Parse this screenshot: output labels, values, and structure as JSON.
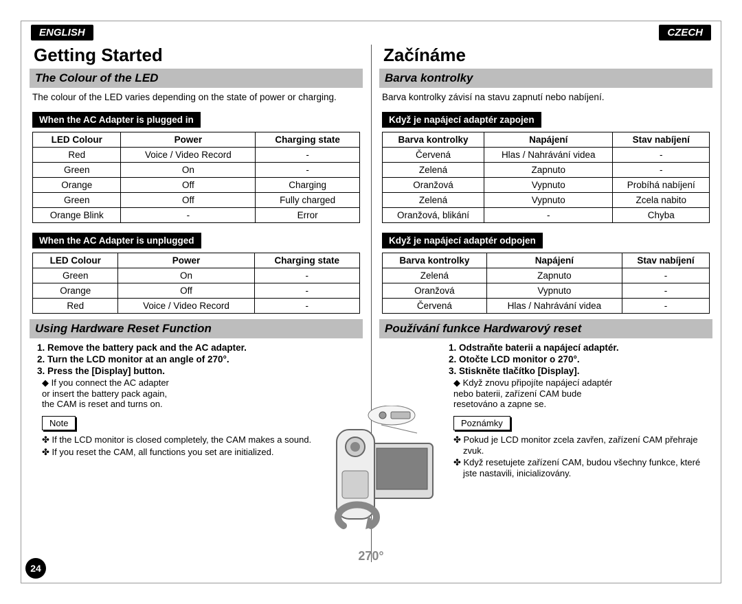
{
  "lang": {
    "left": "ENGLISH",
    "right": "CZECH"
  },
  "page_number": "24",
  "illustration": {
    "angle_label": "270°"
  },
  "en": {
    "h1": "Getting Started",
    "section1_title": "The Colour of the LED",
    "section1_intro": "The colour of the LED varies depending on the state of power or charging.",
    "subhead_plugged": "When the AC Adapter is plugged in",
    "table_plugged": {
      "headers": [
        "LED Colour",
        "Power",
        "Charging state"
      ],
      "rows": [
        [
          "Red",
          "Voice / Video Record",
          "-"
        ],
        [
          "Green",
          "On",
          "-"
        ],
        [
          "Orange",
          "Off",
          "Charging"
        ],
        [
          "Green",
          "Off",
          "Fully charged"
        ],
        [
          "Orange Blink",
          "-",
          "Error"
        ]
      ]
    },
    "subhead_unplugged": "When the AC Adapter is unplugged",
    "table_unplugged": {
      "headers": [
        "LED Colour",
        "Power",
        "Charging state"
      ],
      "rows": [
        [
          "Green",
          "On",
          "-"
        ],
        [
          "Orange",
          "Off",
          "-"
        ],
        [
          "Red",
          "Voice / Video Record",
          "-"
        ]
      ]
    },
    "section2_title": "Using Hardware Reset Function",
    "reset_steps": [
      "Remove the battery pack and the AC adapter.",
      "Turn the LCD monitor at an angle of 270°.",
      "Press the [Display] button."
    ],
    "reset_sub_lead": "◆ If you connect the AC adapter",
    "reset_sub_lines": [
      "or insert the battery pack again,",
      "the CAM is reset and turns on."
    ],
    "note_label": "Note",
    "notes": [
      "If the LCD monitor is closed completely, the CAM makes a sound.",
      "If you reset the CAM, all functions you set are initialized."
    ]
  },
  "cz": {
    "h1": "Začínáme",
    "section1_title": "Barva kontrolky",
    "section1_intro": "Barva kontrolky závisí na stavu zapnutí nebo nabíjení.",
    "subhead_plugged": "Když je napájecí adaptér zapojen",
    "table_plugged": {
      "headers": [
        "Barva kontrolky",
        "Napájení",
        "Stav nabíjení"
      ],
      "rows": [
        [
          "Červená",
          "Hlas / Nahrávání videa",
          "-"
        ],
        [
          "Zelená",
          "Zapnuto",
          "-"
        ],
        [
          "Oranžová",
          "Vypnuto",
          "Probíhá nabíjení"
        ],
        [
          "Zelená",
          "Vypnuto",
          "Zcela nabito"
        ],
        [
          "Oranžová, blikání",
          "-",
          "Chyba"
        ]
      ]
    },
    "subhead_unplugged": "Když je napájecí adaptér odpojen",
    "table_unplugged": {
      "headers": [
        "Barva kontrolky",
        "Napájení",
        "Stav nabíjení"
      ],
      "rows": [
        [
          "Zelená",
          "Zapnuto",
          "-"
        ],
        [
          "Oranžová",
          "Vypnuto",
          "-"
        ],
        [
          "Červená",
          "Hlas / Nahrávání videa",
          "-"
        ]
      ]
    },
    "section2_title": "Používání funkce Hardwarový reset",
    "reset_steps": [
      "Odstraňte baterii a napájecí adaptér.",
      "Otočte LCD monitor o 270°.",
      "Stiskněte tlačítko [Display]."
    ],
    "reset_sub_lead": "◆ Když znovu připojíte napájecí adaptér",
    "reset_sub_lines": [
      "nebo baterii, zařízení CAM bude",
      "resetováno a zapne se."
    ],
    "note_label": "Poznámky",
    "notes": [
      "Pokud je LCD monitor zcela zavřen, zařízení CAM přehraje zvuk.",
      "Když resetujete zařízení CAM, budou všechny funkce, které jste nastavili, inicializovány."
    ]
  }
}
